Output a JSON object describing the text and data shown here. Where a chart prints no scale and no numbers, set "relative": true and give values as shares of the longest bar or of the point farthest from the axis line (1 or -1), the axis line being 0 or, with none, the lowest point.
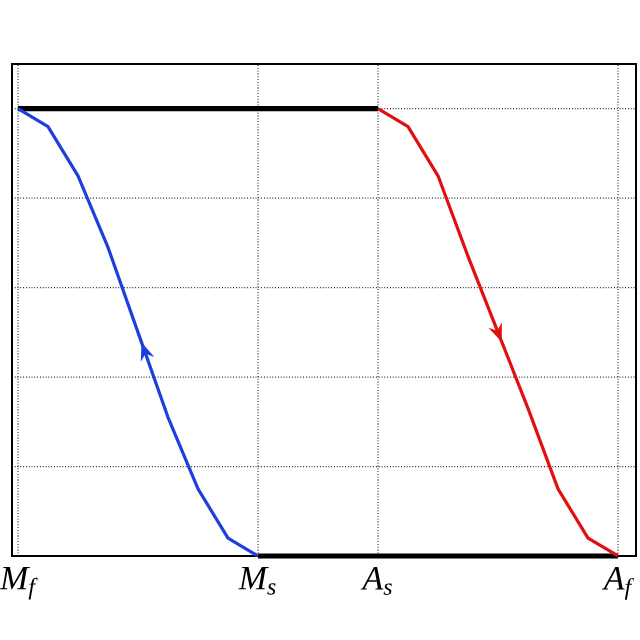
{
  "chart_data": {
    "type": "line",
    "relative": true,
    "categories": [
      "M$_{f}$",
      null,
      null,
      null,
      null,
      null,
      null,
      null,
      "M$_{s}$",
      null,
      null,
      null,
      "A$_{s}$",
      null,
      null,
      null,
      null,
      null,
      null,
      null,
      "A$_{f}$"
    ],
    "grid": true,
    "tick_labels": "x",
    "marker": "none",
    "line_style": "solid",
    "series": [
      {
        "color": "#000000",
        "values": [
          1,
          1,
          1,
          1,
          1,
          1,
          1,
          1,
          1,
          1,
          1,
          1,
          1,
          null,
          null,
          null,
          null,
          null,
          null,
          null,
          null
        ]
      },
      {
        "color": "#000000",
        "values": [
          null,
          null,
          null,
          null,
          null,
          null,
          null,
          null,
          0,
          0,
          0,
          0,
          0,
          0,
          0,
          0,
          0,
          0,
          0,
          0,
          0
        ]
      },
      {
        "color": "#1f3fdc",
        "values": [
          1,
          0.96,
          0.85,
          0.69,
          0.5,
          0.31,
          0.15,
          0.04,
          0,
          null,
          null,
          null,
          null,
          null,
          null,
          null,
          null,
          null,
          null,
          null,
          null
        ]
      },
      {
        "color": "#e01010",
        "values": [
          null,
          null,
          null,
          null,
          null,
          null,
          null,
          null,
          null,
          null,
          null,
          null,
          1,
          0.96,
          0.85,
          0.67,
          0.5,
          0.33,
          0.15,
          0.04,
          0
        ]
      }
    ]
  }
}
